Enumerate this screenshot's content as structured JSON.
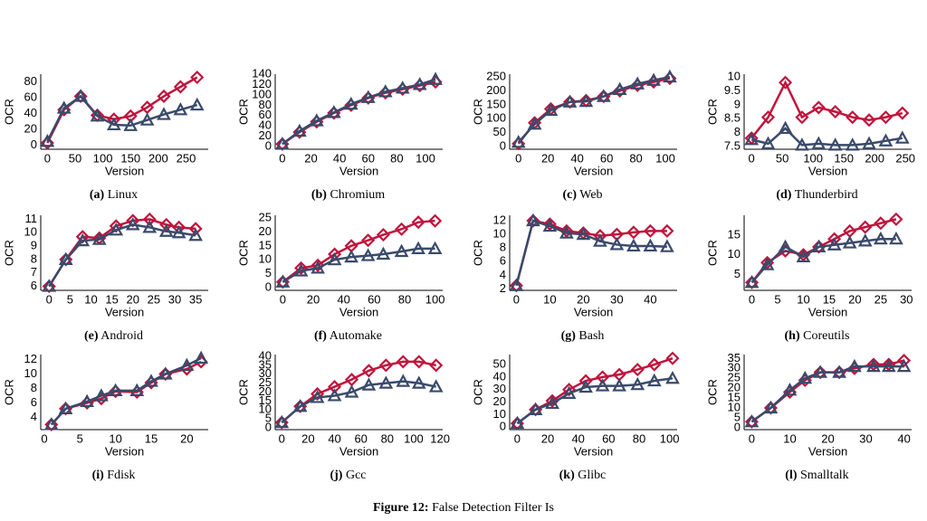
{
  "chart_data": [
    {
      "type": "line",
      "label": "(a)",
      "title": "Linux",
      "xlabel": "Version",
      "ylabel": "OCR",
      "x": [
        0,
        30,
        60,
        90,
        120,
        150,
        180,
        210,
        240,
        270
      ],
      "xlim": [
        -12,
        290
      ],
      "xticks": [
        0,
        50,
        100,
        150,
        200,
        250
      ],
      "ylim": [
        -5,
        90
      ],
      "yticks": [
        0,
        20,
        40,
        60,
        80
      ],
      "series": [
        {
          "color": "#c0143c",
          "marker": "diamond",
          "values": [
            3,
            45,
            62,
            38,
            33,
            37,
            48,
            62,
            74,
            86
          ]
        },
        {
          "color": "#3a4a6b",
          "marker": "triangle",
          "values": [
            5,
            47,
            62,
            37,
            26,
            25,
            32,
            39,
            45,
            51
          ]
        }
      ]
    },
    {
      "type": "line",
      "label": "(b)",
      "title": "Chromium",
      "xlabel": "Version",
      "ylabel": "OCR",
      "x": [
        0,
        12,
        24,
        36,
        48,
        60,
        72,
        84,
        96,
        107
      ],
      "xlim": [
        -5,
        112
      ],
      "xticks": [
        0,
        20,
        40,
        60,
        80,
        100
      ],
      "ylim": [
        -5,
        140
      ],
      "yticks": [
        0,
        20,
        40,
        60,
        80,
        100,
        120,
        140
      ],
      "series": [
        {
          "color": "#c0143c",
          "marker": "diamond",
          "values": [
            5,
            28,
            48,
            65,
            80,
            94,
            104,
            111,
            118,
            125
          ]
        },
        {
          "color": "#3a4a6b",
          "marker": "triangle",
          "values": [
            5,
            30,
            50,
            66,
            82,
            95,
            106,
            113,
            120,
            130
          ]
        }
      ]
    },
    {
      "type": "line",
      "label": "(c)",
      "title": "Web",
      "xlabel": "Version",
      "ylabel": "OCR",
      "x": [
        0,
        11,
        22,
        35,
        46,
        58,
        69,
        81,
        92,
        103
      ],
      "xlim": [
        -6,
        108
      ],
      "xticks": [
        0,
        20,
        40,
        60,
        80,
        100
      ],
      "ylim": [
        -10,
        260
      ],
      "yticks": [
        0,
        50,
        100,
        150,
        200,
        250
      ],
      "series": [
        {
          "color": "#c0143c",
          "marker": "diamond",
          "values": [
            10,
            85,
            135,
            160,
            165,
            180,
            200,
            220,
            232,
            245
          ]
        },
        {
          "color": "#3a4a6b",
          "marker": "triangle",
          "values": [
            15,
            80,
            130,
            160,
            162,
            180,
            205,
            225,
            238,
            250
          ]
        }
      ]
    },
    {
      "type": "line",
      "label": "(d)",
      "title": "Thunderbird",
      "xlabel": "Version",
      "ylabel": "OCR",
      "x": [
        0,
        27,
        55,
        82,
        109,
        136,
        164,
        191,
        218,
        245
      ],
      "xlim": [
        -12,
        260
      ],
      "xticks": [
        0,
        50,
        100,
        150,
        200,
        250
      ],
      "ylim": [
        7.4,
        10.1
      ],
      "yticks": [
        7.5,
        8,
        8.5,
        9,
        9.5,
        10
      ],
      "series": [
        {
          "color": "#c0143c",
          "marker": "diamond",
          "values": [
            7.8,
            8.55,
            9.8,
            8.55,
            8.9,
            8.75,
            8.55,
            8.45,
            8.55,
            8.7
          ]
        },
        {
          "color": "#3a4a6b",
          "marker": "triangle",
          "values": [
            7.75,
            7.6,
            8.15,
            7.55,
            7.6,
            7.55,
            7.55,
            7.6,
            7.7,
            7.8
          ]
        }
      ]
    },
    {
      "type": "line",
      "label": "(e)",
      "title": "Android",
      "xlabel": "Version",
      "ylabel": "OCR",
      "x": [
        0,
        4,
        8,
        12,
        16,
        20,
        24,
        28,
        31,
        35
      ],
      "xlim": [
        -2,
        38
      ],
      "xticks": [
        0,
        5,
        10,
        15,
        20,
        25,
        30,
        35
      ],
      "ylim": [
        5.7,
        11.3
      ],
      "yticks": [
        6,
        7,
        8,
        9,
        10,
        11
      ],
      "series": [
        {
          "color": "#c0143c",
          "marker": "diamond",
          "values": [
            6,
            8,
            9.7,
            9.6,
            10.5,
            10.9,
            11,
            10.6,
            10.4,
            10.3
          ]
        },
        {
          "color": "#3a4a6b",
          "marker": "triangle",
          "values": [
            6,
            8,
            9.4,
            9.5,
            10.2,
            10.6,
            10.4,
            10.1,
            10,
            9.8
          ]
        }
      ]
    },
    {
      "type": "line",
      "label": "(f)",
      "title": "Automake",
      "xlabel": "Version",
      "ylabel": "OCR",
      "x": [
        0,
        12,
        23,
        34,
        45,
        56,
        66,
        78,
        89,
        100
      ],
      "xlim": [
        -5,
        105
      ],
      "xticks": [
        0,
        20,
        40,
        60,
        80,
        100
      ],
      "ylim": [
        -1,
        26
      ],
      "yticks": [
        0,
        5,
        10,
        15,
        20,
        25
      ],
      "series": [
        {
          "color": "#c0143c",
          "marker": "diamond",
          "values": [
            2,
            7,
            8,
            12,
            15,
            17,
            19,
            21,
            23.5,
            24
          ]
        },
        {
          "color": "#3a4a6b",
          "marker": "triangle",
          "values": [
            2,
            6,
            7,
            10,
            11,
            11.5,
            12,
            13,
            14,
            14
          ]
        }
      ]
    },
    {
      "type": "line",
      "label": "(g)",
      "title": "Bash",
      "xlabel": "Version",
      "ylabel": "OCR",
      "x": [
        0,
        5,
        10,
        15,
        20,
        25,
        30,
        35,
        40,
        45
      ],
      "xlim": [
        -2,
        48
      ],
      "xticks": [
        0,
        10,
        20,
        30,
        40
      ],
      "ylim": [
        1.8,
        12.8
      ],
      "yticks": [
        2,
        4,
        6,
        8,
        10,
        12
      ],
      "series": [
        {
          "color": "#c0143c",
          "marker": "diamond",
          "values": [
            2.5,
            12,
            11.5,
            10.5,
            10.2,
            9.8,
            10,
            10.3,
            10.5,
            10.5
          ]
        },
        {
          "color": "#3a4a6b",
          "marker": "triangle",
          "values": [
            2.5,
            12,
            11.2,
            10.2,
            10,
            9,
            8.5,
            8.3,
            8.3,
            8.2
          ]
        }
      ]
    },
    {
      "type": "line",
      "label": "(h)",
      "title": "Coreutils",
      "xlabel": "Version",
      "ylabel": "OCR",
      "x": [
        0,
        3,
        6.5,
        10,
        13,
        16,
        19,
        22,
        25,
        28
      ],
      "xlim": [
        -1.5,
        31
      ],
      "xticks": [
        0,
        5,
        10,
        15,
        20,
        25,
        30
      ],
      "ylim": [
        1,
        20
      ],
      "yticks": [
        5,
        10,
        15
      ],
      "series": [
        {
          "color": "#c0143c",
          "marker": "diamond",
          "values": [
            3,
            8,
            11,
            10,
            12,
            14,
            16,
            17,
            18,
            19
          ]
        },
        {
          "color": "#3a4a6b",
          "marker": "triangle",
          "values": [
            3,
            7.5,
            12,
            9.5,
            12,
            12.5,
            13,
            13.5,
            14,
            14
          ]
        }
      ]
    },
    {
      "type": "line",
      "label": "(i)",
      "title": "Fdisk",
      "xlabel": "Version",
      "ylabel": "OCR",
      "x": [
        1,
        3,
        6,
        8,
        10,
        13,
        15,
        17,
        20,
        22
      ],
      "xlim": [
        -0.5,
        23
      ],
      "xticks": [
        0,
        5,
        10,
        15,
        20
      ],
      "ylim": [
        2.3,
        12.7
      ],
      "yticks": [
        4,
        6,
        8,
        10,
        12
      ],
      "series": [
        {
          "color": "#c0143c",
          "marker": "diamond",
          "values": [
            3,
            5.2,
            6,
            6.6,
            7.6,
            7.5,
            8.8,
            10,
            10.7,
            11.7
          ]
        },
        {
          "color": "#3a4a6b",
          "marker": "triangle",
          "values": [
            3,
            5.2,
            6.2,
            7,
            7.7,
            7.7,
            9,
            10,
            11.2,
            12.2
          ]
        }
      ]
    },
    {
      "type": "line",
      "label": "(j)",
      "title": "Gcc",
      "xlabel": "Version",
      "ylabel": "OCR",
      "x": [
        0,
        14,
        27,
        40,
        53,
        66,
        79,
        92,
        104,
        117
      ],
      "xlim": [
        -5,
        122
      ],
      "xticks": [
        0,
        20,
        40,
        60,
        80,
        100,
        120
      ],
      "ylim": [
        -1,
        41
      ],
      "yticks": [
        0,
        5,
        10,
        15,
        20,
        25,
        30,
        35,
        40
      ],
      "series": [
        {
          "color": "#c0143c",
          "marker": "diamond",
          "values": [
            3,
            12,
            19,
            23,
            27,
            32,
            35,
            37,
            37,
            35
          ]
        },
        {
          "color": "#3a4a6b",
          "marker": "triangle",
          "values": [
            3,
            12,
            17,
            18,
            20,
            24,
            25,
            26,
            25,
            23
          ]
        }
      ]
    },
    {
      "type": "line",
      "label": "(k)",
      "title": "Glibc",
      "xlabel": "Version",
      "ylabel": "OCR",
      "x": [
        0,
        12,
        23,
        34,
        45,
        56,
        67,
        79,
        90,
        102
      ],
      "xlim": [
        -5,
        105
      ],
      "xticks": [
        0,
        20,
        40,
        60,
        80,
        100
      ],
      "ylim": [
        -2,
        58
      ],
      "yticks": [
        0,
        10,
        20,
        30,
        40,
        50
      ],
      "series": [
        {
          "color": "#c0143c",
          "marker": "diamond",
          "values": [
            3,
            14,
            21,
            30,
            37,
            40,
            42,
            46,
            50,
            55
          ]
        },
        {
          "color": "#3a4a6b",
          "marker": "triangle",
          "values": [
            3,
            14,
            19,
            27,
            32,
            33,
            33,
            34,
            37,
            39
          ]
        }
      ]
    },
    {
      "type": "line",
      "label": "(l)",
      "title": "Smalltalk",
      "xlabel": "Version",
      "ylabel": "OCR",
      "x": [
        0,
        5,
        10,
        14,
        18,
        23,
        27,
        32,
        36,
        40
      ],
      "xlim": [
        -2,
        42
      ],
      "xticks": [
        0,
        10,
        20,
        30,
        40
      ],
      "ylim": [
        -1,
        37
      ],
      "yticks": [
        0,
        5,
        10,
        15,
        20,
        25,
        30,
        35
      ],
      "series": [
        {
          "color": "#c0143c",
          "marker": "diamond",
          "values": [
            3,
            10,
            18,
            24,
            28,
            28,
            30,
            32,
            32,
            34
          ]
        },
        {
          "color": "#3a4a6b",
          "marker": "triangle",
          "values": [
            3,
            10,
            19,
            25,
            28,
            28,
            31,
            31,
            31,
            31
          ]
        }
      ]
    }
  ],
  "caption": {
    "label": "Figure 12:",
    "text": "False Detection Filter Is"
  }
}
